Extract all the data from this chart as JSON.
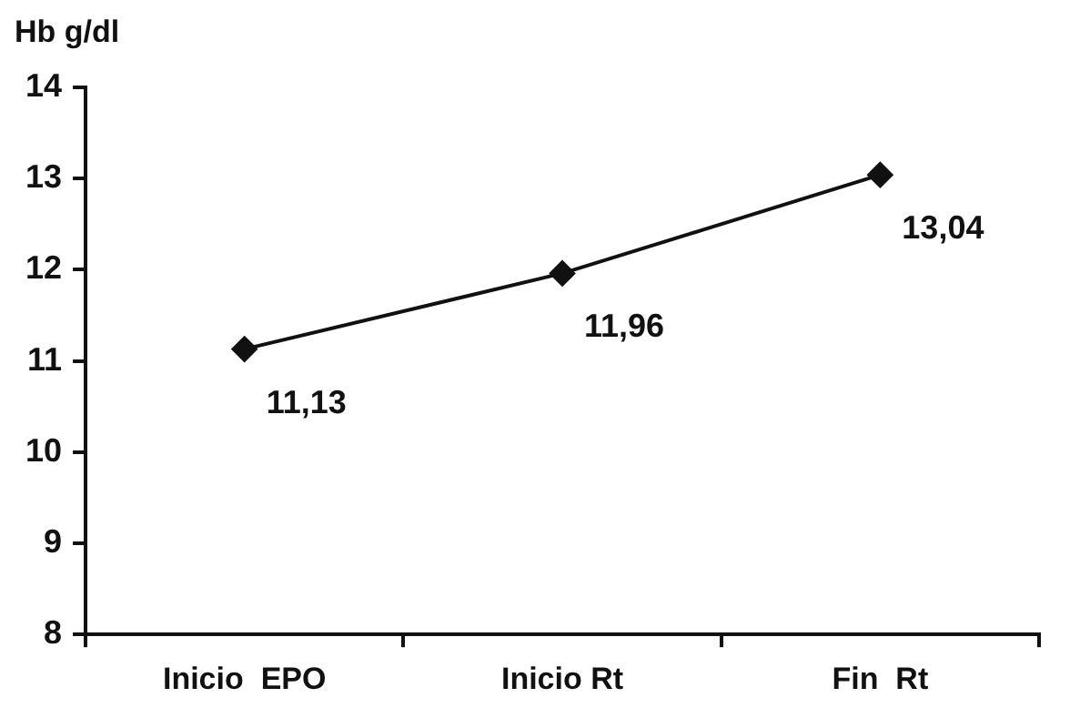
{
  "chart_data": {
    "type": "line",
    "ylabel": "Hb g/dl",
    "categories": [
      "Inicio  EPO",
      "Inicio Rt",
      "Fin  Rt"
    ],
    "series": [
      {
        "color": "#111111",
        "values": [
          11.13,
          11.96,
          13.04
        ],
        "value_labels": [
          "11,13",
          "11,96",
          "13,04"
        ]
      }
    ],
    "ylim": [
      8,
      14
    ],
    "yticks": [
      8,
      9,
      10,
      11,
      12,
      13,
      14
    ],
    "grid": false,
    "legend": false,
    "marker": "diamond",
    "line_style": "solid"
  }
}
